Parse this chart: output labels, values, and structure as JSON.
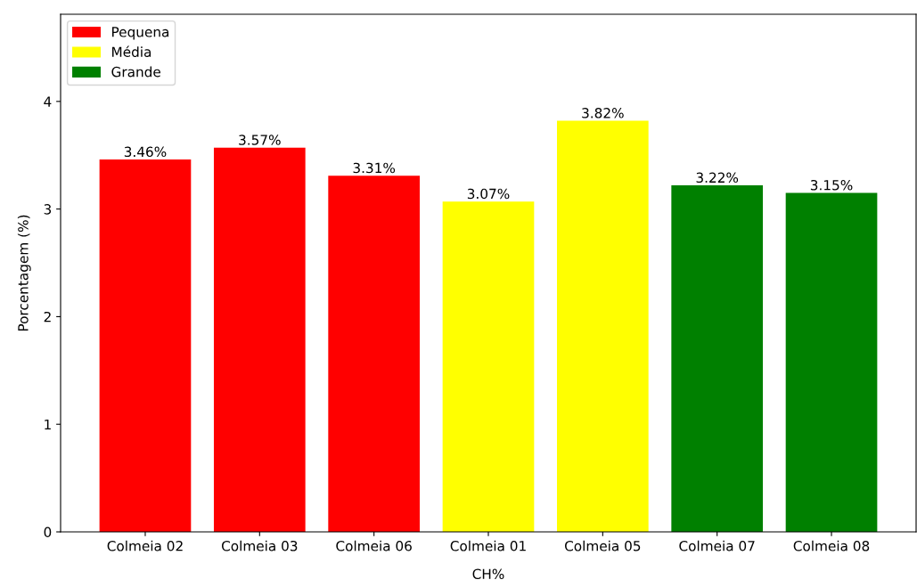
{
  "chart_data": {
    "type": "bar",
    "stacked": true,
    "xlabel": "CH%",
    "ylabel": "Porcentagem (%)",
    "categories": [
      "Colmeia 02",
      "Colmeia 03",
      "Colmeia 06",
      "Colmeia 01",
      "Colmeia 05",
      "Colmeia 07",
      "Colmeia 08"
    ],
    "series": [
      {
        "name": "Pequena",
        "color": "#ff0000",
        "values": [
          3.46,
          3.57,
          3.31,
          null,
          null,
          null,
          null
        ],
        "value_labels": [
          "3.46%",
          "3.57%",
          "3.31%",
          null,
          null,
          null,
          null
        ]
      },
      {
        "name": "Média",
        "color": "#ffff00",
        "values": [
          null,
          null,
          null,
          3.07,
          3.82,
          null,
          null
        ],
        "value_labels": [
          null,
          null,
          null,
          "3.07%",
          "3.82%",
          null,
          null
        ]
      },
      {
        "name": "Grande",
        "color": "#008000",
        "values": [
          null,
          null,
          null,
          null,
          null,
          3.22,
          3.15
        ],
        "value_labels": [
          null,
          null,
          null,
          null,
          null,
          "3.22%",
          "3.15%"
        ]
      }
    ],
    "ylim": [
      0,
      4.81
    ],
    "yticks": [
      0,
      1,
      2,
      3,
      4
    ],
    "grid": false,
    "legend": "top left"
  }
}
